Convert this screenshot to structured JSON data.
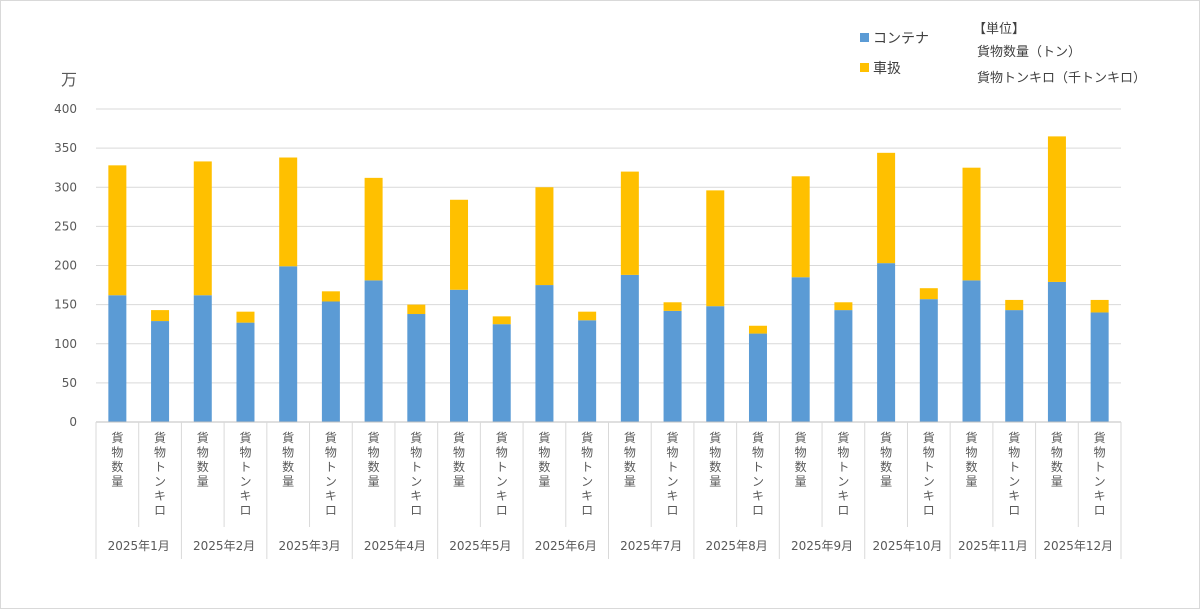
{
  "chart_data": {
    "type": "bar",
    "stacked": true,
    "ylabel": "万",
    "ylim": [
      0,
      400
    ],
    "yticks": [
      0,
      50,
      100,
      150,
      200,
      250,
      300,
      350,
      400
    ],
    "grid": true,
    "legend_position": "top-right",
    "sub_categories": [
      "貨物数量",
      "貨物トンキロ"
    ],
    "months": [
      "2025年1月",
      "2025年2月",
      "2025年3月",
      "2025年4月",
      "2025年5月",
      "2025年6月",
      "2025年7月",
      "2025年8月",
      "2025年9月",
      "2025年10月",
      "2025年11月",
      "2025年12月"
    ],
    "series": [
      {
        "name": "コンテナ",
        "color": "#5b9bd5",
        "values": [
          162,
          129,
          162,
          127,
          199,
          154,
          181,
          138,
          169,
          125,
          175,
          130,
          188,
          142,
          148,
          113,
          185,
          143,
          203,
          157,
          181,
          143,
          179,
          140
        ]
      },
      {
        "name": "車扱",
        "color": "#ffc000",
        "values": [
          166,
          14,
          171,
          14,
          139,
          13,
          131,
          12,
          115,
          10,
          125,
          11,
          132,
          11,
          148,
          10,
          129,
          10,
          141,
          14,
          144,
          13,
          186,
          16
        ]
      }
    ],
    "unit_note": {
      "title": "【単位】",
      "lines": [
        "貨物数量（トン）",
        "貨物トンキロ（千トンキロ）"
      ]
    }
  }
}
